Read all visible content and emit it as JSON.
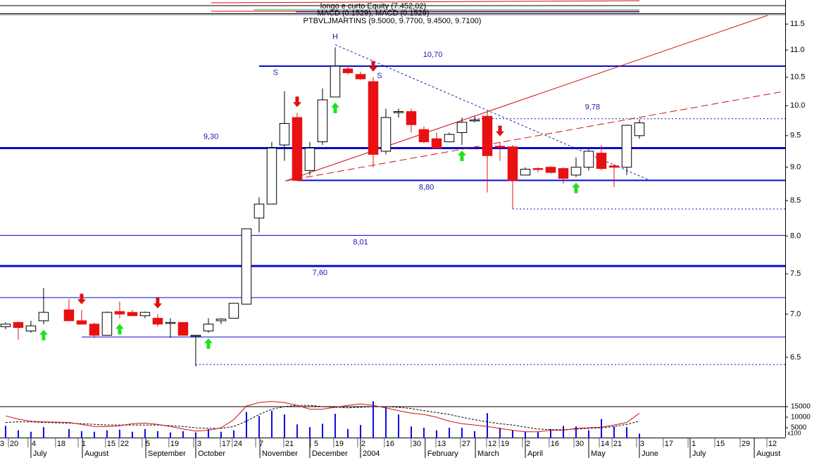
{
  "header": {
    "lines": [
      "longo e curto Equity (7.452,02)",
      "MACD (0.1529), MACD (0.1529)",
      "PTBVLJMARTINS (9.5000, 9.7700, 9.4500, 9.7100)"
    ]
  },
  "chart_data": {
    "type": "candlestick",
    "log_scale": true,
    "x": [
      0,
      1,
      2,
      3,
      5,
      6,
      7,
      8,
      9,
      10,
      11,
      12,
      13,
      14,
      15,
      16,
      17,
      18,
      19,
      20,
      21,
      22,
      23,
      24,
      25,
      26,
      27,
      28,
      29,
      30,
      31,
      32,
      33,
      34,
      35,
      36,
      37,
      38,
      39,
      40,
      41,
      42,
      43,
      44,
      45,
      46,
      47,
      48,
      49,
      50
    ],
    "open": [
      6.85,
      6.9,
      6.8,
      6.92,
      7.05,
      6.92,
      6.88,
      6.75,
      7.03,
      7.02,
      6.98,
      6.95,
      6.9,
      6.9,
      6.75,
      6.8,
      6.92,
      6.95,
      7.12,
      8.25,
      8.45,
      9.35,
      9.8,
      8.95,
      9.4,
      10.15,
      10.65,
      10.55,
      10.42,
      9.25,
      9.9,
      9.9,
      9.6,
      9.45,
      9.4,
      9.55,
      9.76,
      9.82,
      9.33,
      9.32,
      8.88,
      8.98,
      9.0,
      8.98,
      8.88,
      9.0,
      9.22,
      9.02,
      9.0,
      9.5
    ],
    "high": [
      6.9,
      6.91,
      6.92,
      7.32,
      7.18,
      7.05,
      6.9,
      7.03,
      7.15,
      7.05,
      7.03,
      7.0,
      6.95,
      6.9,
      6.75,
      6.95,
      6.95,
      7.13,
      8.1,
      8.55,
      9.4,
      10.25,
      9.88,
      9.4,
      10.3,
      11.05,
      10.7,
      10.6,
      10.5,
      9.95,
      9.95,
      9.95,
      9.65,
      9.55,
      9.55,
      9.8,
      9.82,
      9.9,
      9.4,
      9.35,
      9.0,
      9.0,
      9.02,
      9.0,
      9.15,
      9.28,
      9.35,
      9.05,
      9.68,
      9.77
    ],
    "low": [
      6.82,
      6.7,
      6.78,
      6.88,
      6.95,
      6.9,
      6.72,
      6.75,
      6.95,
      6.98,
      6.95,
      6.85,
      6.72,
      6.75,
      6.4,
      6.78,
      6.88,
      6.95,
      7.12,
      8.05,
      8.45,
      9.1,
      8.8,
      8.88,
      9.35,
      10.15,
      10.55,
      10.45,
      9.0,
      9.2,
      9.8,
      9.55,
      9.38,
      9.3,
      9.4,
      9.35,
      9.72,
      8.62,
      9.1,
      8.38,
      8.88,
      8.92,
      8.9,
      8.75,
      8.85,
      8.95,
      8.95,
      8.7,
      8.88,
      9.45
    ],
    "close": [
      6.88,
      6.84,
      6.86,
      7.02,
      6.92,
      6.88,
      6.75,
      7.02,
      7.0,
      6.98,
      7.02,
      6.88,
      6.9,
      6.75,
      6.75,
      6.88,
      6.94,
      7.13,
      8.1,
      8.45,
      9.3,
      9.7,
      8.8,
      9.3,
      10.1,
      10.7,
      10.58,
      10.47,
      9.2,
      9.8,
      9.9,
      9.68,
      9.4,
      9.3,
      9.52,
      9.72,
      9.76,
      9.18,
      9.32,
      8.8,
      8.97,
      8.97,
      8.92,
      8.83,
      9.0,
      9.25,
      8.98,
      9.0,
      9.67,
      9.71
    ],
    "up_color": "#ffffff",
    "down_color": "#e81010",
    "xlim": [
      -0.44,
      61.5
    ],
    "ylim": [
      6.09,
      11.67
    ],
    "yticks": [
      6.5,
      {
        "value": 7,
        "label": "7.0"
      },
      7.5,
      {
        "value": 8,
        "label": "8.0"
      },
      8.5,
      {
        "value": 9,
        "label": "9.0"
      },
      9.5,
      {
        "value": 10,
        "label": "10.0"
      },
      10.5,
      {
        "value": 11,
        "label": "11.0"
      },
      11.5
    ],
    "xticks": [
      {
        "value": -0.28,
        "label": "3"
      },
      {
        "value": 0.67,
        "label": "20"
      },
      {
        "value": 2.22,
        "label": "4"
      },
      {
        "value": 4.39,
        "label": "18"
      },
      {
        "value": 6.17,
        "label": "1"
      },
      {
        "value": 8.33,
        "label": "15"
      },
      {
        "value": 9.39,
        "label": "22"
      },
      {
        "value": 11.22,
        "label": "5"
      },
      {
        "value": 13.33,
        "label": "19"
      },
      {
        "value": 15.28,
        "label": "3"
      },
      {
        "value": 17.39,
        "label": "17"
      },
      {
        "value": 18.33,
        "label": "24"
      },
      {
        "value": 20.17,
        "label": "7"
      },
      {
        "value": 22.39,
        "label": "21"
      },
      {
        "value": 24.5,
        "label": "5"
      },
      {
        "value": 26.33,
        "label": "19"
      },
      {
        "value": 28.22,
        "label": "2"
      },
      {
        "value": 30.33,
        "label": "16"
      },
      {
        "value": 32.44,
        "label": "30"
      },
      {
        "value": 34.39,
        "label": "13"
      },
      {
        "value": 36.33,
        "label": "27"
      },
      {
        "value": 38.39,
        "label": "12"
      },
      {
        "value": 39.39,
        "label": "19"
      },
      {
        "value": 41.22,
        "label": "2"
      },
      {
        "value": 43.33,
        "label": "16"
      },
      {
        "value": 45.28,
        "label": "30"
      },
      {
        "value": 47.28,
        "label": "14"
      },
      {
        "value": 48.28,
        "label": "21"
      },
      {
        "value": 50.22,
        "label": "3"
      },
      {
        "value": 52.33,
        "label": "17"
      },
      {
        "value": 54.28,
        "label": "1"
      },
      {
        "value": 56.39,
        "label": "15"
      },
      {
        "value": 58.39,
        "label": "29"
      },
      {
        "value": 60.5,
        "label": "12"
      }
    ],
    "month_ticks": [
      {
        "value": 2,
        "label": "July"
      },
      {
        "value": 6.06,
        "label": "August"
      },
      {
        "value": 11.06,
        "label": "September"
      },
      {
        "value": 15,
        "label": "October"
      },
      {
        "value": 20.06,
        "label": "November"
      },
      {
        "value": 24,
        "label": "December"
      },
      {
        "value": 28,
        "label": "2004"
      },
      {
        "value": 33.1,
        "label": "February"
      },
      {
        "value": 37.06,
        "label": "March"
      },
      {
        "value": 41,
        "label": "April"
      },
      {
        "value": 46,
        "label": "May"
      },
      {
        "value": 50,
        "label": "June"
      },
      {
        "value": 54,
        "label": "July"
      },
      {
        "value": 59.06,
        "label": "August"
      }
    ],
    "level_color": "#0a0ad0",
    "levels": [
      {
        "value": 10.7,
        "label": "10,70",
        "from": 20,
        "label_at": 33.7,
        "label_pos": "above",
        "style": "medium"
      },
      {
        "value": 9.3,
        "label": "9,30",
        "from": -0.44,
        "label_at": 16.2,
        "label_pos": "above",
        "style": "thick"
      },
      {
        "value": 8.8,
        "label": "8,80",
        "from": 23,
        "label_at": 33.2,
        "label_pos": "below",
        "style": "medium"
      },
      {
        "value": 8.01,
        "label": "8,01",
        "from": -0.44,
        "label_at": 28,
        "label_pos": "below",
        "style": "thin"
      },
      {
        "value": 7.6,
        "label": "7,60",
        "from": -0.44,
        "label_at": 24.8,
        "label_pos": "below",
        "style": "thick"
      },
      {
        "value": 7.2,
        "from": -0.44,
        "style": "thin"
      },
      {
        "value": 6.73,
        "from": 6,
        "style": "thin"
      },
      {
        "value": 6.42,
        "from": 15,
        "style": "dotted"
      },
      {
        "value": 8.38,
        "from": 40,
        "style": "dotted"
      },
      {
        "value": 9.78,
        "label": "9,78",
        "from": 37,
        "label_at": 46.3,
        "label_pos": "above",
        "style": "dotted"
      }
    ],
    "trend_lines": [
      {
        "from": [
          22.06,
          8.79
        ],
        "to": [
          60.1,
          11.67
        ],
        "color": "#d01010",
        "style": "solid"
      },
      {
        "from": [
          22.06,
          8.79
        ],
        "to": [
          61.2,
          10.24
        ],
        "color": "#d01010",
        "style": "dashed"
      },
      {
        "from": [
          26,
          11.1
        ],
        "to": [
          50.7,
          8.81
        ],
        "color": "#1a1aa8",
        "style": "dotted"
      }
    ],
    "arrow_up_color": "#20e020",
    "arrow_down_color": "#e01010",
    "arrows": [
      {
        "x": 3,
        "dir": "up"
      },
      {
        "x": 9,
        "dir": "up"
      },
      {
        "x": 16,
        "dir": "up"
      },
      {
        "x": 26,
        "dir": "up"
      },
      {
        "x": 36,
        "dir": "up"
      },
      {
        "x": 45,
        "dir": "up"
      },
      {
        "x": 6,
        "dir": "down"
      },
      {
        "x": 12,
        "dir": "down"
      },
      {
        "x": 23,
        "dir": "down"
      },
      {
        "x": 29,
        "dir": "down"
      },
      {
        "x": 39,
        "dir": "down"
      }
    ],
    "annotations": [
      {
        "text": "H",
        "x": 26,
        "price": 11.25
      },
      {
        "text": "S",
        "x": 21.3,
        "price": 10.58
      },
      {
        "text": "S",
        "x": 29.5,
        "price": 10.52
      }
    ],
    "volume": [
      5900,
      3800,
      3100,
      5300,
      4400,
      3400,
      3100,
      3800,
      4100,
      3100,
      4400,
      3400,
      2800,
      3400,
      2800,
      4400,
      3100,
      3800,
      12500,
      10600,
      13100,
      11300,
      6600,
      5300,
      6900,
      11600,
      4400,
      6300,
      17500,
      15000,
      11300,
      5600,
      5000,
      3800,
      5000,
      5000,
      3400,
      11900,
      5000,
      3800,
      3100,
      3100,
      4400,
      5900,
      5600,
      3800,
      9100,
      5600,
      5300,
      2200
    ],
    "volume_color": "#0a0ae0",
    "volume_avg": [
      10600,
      9100,
      8100,
      7800,
      7500,
      6600,
      5600,
      5600,
      5900,
      6900,
      7200,
      6600,
      5600,
      4400,
      3400,
      3800,
      5000,
      8800,
      15300,
      16900,
      17500,
      16900,
      15600,
      13800,
      13800,
      14700,
      15600,
      16300,
      15600,
      14400,
      13100,
      11900,
      11300,
      10000,
      8100,
      6900,
      6300,
      5600,
      4700,
      3800,
      3100,
      3100,
      3800,
      3800,
      4700,
      5000,
      5300,
      6300,
      7500,
      11900
    ],
    "volume_avg_color": "#d01010",
    "volume_signal": [
      7500,
      7800,
      7800,
      7500,
      7200,
      6900,
      6600,
      6300,
      6300,
      6300,
      6300,
      6300,
      6000,
      5600,
      5000,
      4700,
      4700,
      5600,
      8100,
      11300,
      13800,
      15000,
      15600,
      15600,
      15000,
      14700,
      14400,
      14700,
      15000,
      15000,
      14700,
      14100,
      13100,
      12200,
      11300,
      10000,
      8800,
      7800,
      6900,
      6300,
      5300,
      4400,
      4100,
      4100,
      4400,
      4700,
      5000,
      5600,
      6600,
      8100
    ],
    "volume_signal_color": "#000000",
    "volume_ylim": [
      0,
      15000
    ],
    "volume_yticks": [
      15000,
      10000,
      5000
    ],
    "volume_unit_label": "x100"
  }
}
